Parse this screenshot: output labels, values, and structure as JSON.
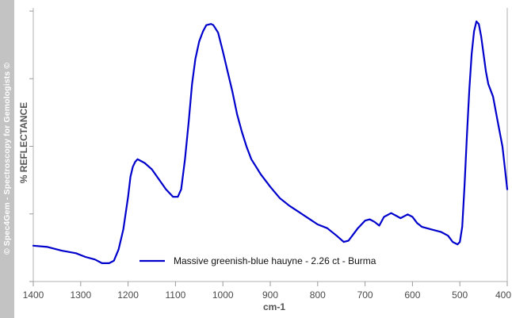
{
  "watermark": "© Spec4Gem - Spectroscopy for Gemologists ©",
  "chart_data": {
    "type": "line",
    "xlabel": "cm-1",
    "ylabel": "% REFLECTANCE",
    "xlim": [
      1400,
      400
    ],
    "x_reversed": true,
    "ylim": [
      0,
      1
    ],
    "y_tick_labels_shown": false,
    "x_ticks": [
      1400,
      1300,
      1200,
      1100,
      1000,
      900,
      800,
      700,
      600,
      500,
      400
    ],
    "x_tick_labels": [
      "1400",
      "1300",
      "1200",
      "1100",
      "1000",
      "900",
      "800",
      "700",
      "600",
      "500",
      "400"
    ],
    "grid": false,
    "legend_position": "bottom-center",
    "series": [
      {
        "name": "Massive greenish-blue hauyne - 2.26 ct - Burma",
        "color": "#0000cc",
        "x": [
          1400,
          1370,
          1340,
          1310,
          1290,
          1270,
          1255,
          1240,
          1230,
          1220,
          1210,
          1200,
          1195,
          1190,
          1185,
          1180,
          1175,
          1165,
          1150,
          1135,
          1120,
          1105,
          1095,
          1088,
          1080,
          1072,
          1065,
          1058,
          1050,
          1042,
          1035,
          1025,
          1020,
          1010,
          1000,
          990,
          980,
          970,
          960,
          950,
          940,
          930,
          920,
          900,
          880,
          860,
          840,
          820,
          800,
          780,
          760,
          745,
          735,
          725,
          715,
          700,
          690,
          680,
          670,
          660,
          645,
          635,
          625,
          610,
          600,
          590,
          580,
          560,
          540,
          525,
          515,
          505,
          500,
          495,
          490,
          485,
          480,
          475,
          470,
          465,
          460,
          455,
          450,
          445,
          440,
          430,
          420,
          410,
          400
        ],
        "y": [
          0.105,
          0.1,
          0.085,
          0.075,
          0.06,
          0.05,
          0.035,
          0.035,
          0.045,
          0.09,
          0.17,
          0.3,
          0.38,
          0.42,
          0.44,
          0.45,
          0.445,
          0.435,
          0.41,
          0.37,
          0.33,
          0.3,
          0.3,
          0.33,
          0.45,
          0.6,
          0.75,
          0.85,
          0.92,
          0.96,
          0.985,
          0.99,
          0.985,
          0.955,
          0.88,
          0.8,
          0.72,
          0.63,
          0.56,
          0.5,
          0.45,
          0.42,
          0.39,
          0.34,
          0.295,
          0.265,
          0.24,
          0.215,
          0.19,
          0.175,
          0.145,
          0.12,
          0.125,
          0.15,
          0.175,
          0.205,
          0.21,
          0.2,
          0.185,
          0.22,
          0.235,
          0.225,
          0.215,
          0.23,
          0.22,
          0.195,
          0.18,
          0.17,
          0.16,
          0.145,
          0.12,
          0.11,
          0.12,
          0.18,
          0.35,
          0.55,
          0.73,
          0.87,
          0.96,
          1.0,
          0.99,
          0.94,
          0.87,
          0.8,
          0.75,
          0.7,
          0.6,
          0.5,
          0.33
        ]
      }
    ]
  }
}
